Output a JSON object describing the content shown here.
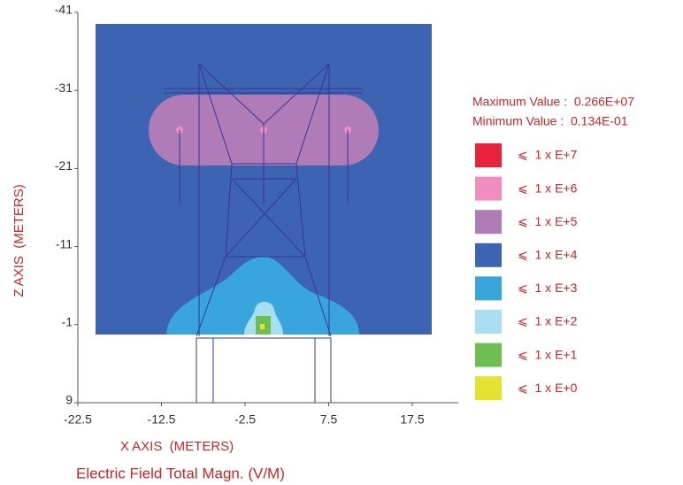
{
  "chart_data": {
    "type": "contour",
    "title": "Electric Field Total Magn. (V/M)",
    "x_label": "X AXIS  (METERS)",
    "y_label": "Z AXIS  (METERS)",
    "xlim": [
      -22.5,
      23
    ],
    "xticks": [
      -22.5,
      -12.5,
      -2.5,
      7.5,
      17.5
    ],
    "ylim": [
      -41,
      9
    ],
    "yticks": [
      -41,
      -31,
      -21,
      -11,
      -1,
      9
    ],
    "y_inverted": true,
    "max_label": "Maximum Value :  0.266E+07",
    "min_label": "Minimum Value :  0.134E-01",
    "legend": [
      {
        "label": "⩽  1 x E+7",
        "color": "#e8223a"
      },
      {
        "label": "⩽  1 x E+6",
        "color": "#f08cc0"
      },
      {
        "label": "⩽  1 x E+5",
        "color": "#b07cb8"
      },
      {
        "label": "⩽  1 x E+4",
        "color": "#3d63b3"
      },
      {
        "label": "⩽  1 x E+3",
        "color": "#38a6dc"
      },
      {
        "label": "⩽  1 x E+2",
        "color": "#a8def2"
      },
      {
        "label": "⩽  1 x E+1",
        "color": "#6cbf50"
      },
      {
        "label": "⩽  1 x E+0",
        "color": "#e6e030"
      }
    ]
  }
}
